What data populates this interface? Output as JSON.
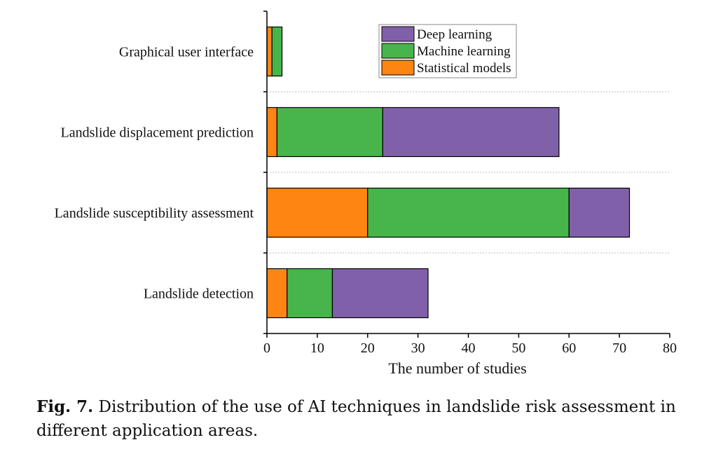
{
  "chart_data": {
    "type": "bar",
    "orientation": "horizontal",
    "stacked": true,
    "categories": [
      "Graphical user interface",
      "Landslide displacement prediction",
      "Landslide susceptibility assessment",
      "Landslide detection"
    ],
    "series": [
      {
        "name": "Statistical models",
        "color": "#ff8513",
        "values": [
          1,
          2,
          20,
          4
        ]
      },
      {
        "name": "Machine learning",
        "color": "#47b54b",
        "values": [
          2,
          21,
          40,
          9
        ]
      },
      {
        "name": "Deep learning",
        "color": "#8160aa",
        "values": [
          0,
          35,
          12,
          19
        ]
      }
    ],
    "legend_order": [
      "Deep learning",
      "Machine learning",
      "Statistical models"
    ],
    "legend_position": "top-right",
    "xlabel": "The number of studies",
    "ylabel": "",
    "xlim": [
      0,
      80
    ],
    "xticks": [
      0,
      10,
      20,
      30,
      40,
      50,
      60,
      70,
      80
    ],
    "grid": "horizontal dotted separators"
  },
  "caption": {
    "label": "Fig. 7.",
    "text": " Distribution of the use of AI techniques in landslide risk assessment in different application areas."
  }
}
